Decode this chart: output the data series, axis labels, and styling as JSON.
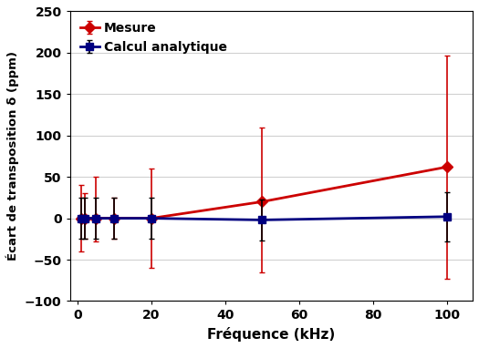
{
  "mesure_x": [
    1,
    2,
    5,
    10,
    20,
    50,
    100
  ],
  "mesure_y": [
    0,
    0,
    0,
    0,
    0,
    20,
    62
  ],
  "mesure_yerr_low": [
    40,
    25,
    28,
    25,
    60,
    85,
    135
  ],
  "mesure_yerr_high": [
    40,
    30,
    50,
    25,
    60,
    90,
    135
  ],
  "calcul_x": [
    1,
    2,
    5,
    10,
    20,
    50,
    100
  ],
  "calcul_y": [
    0,
    0,
    0,
    0,
    0,
    -2,
    2
  ],
  "calcul_yerr_low": [
    25,
    25,
    25,
    25,
    25,
    25,
    30
  ],
  "calcul_yerr_high": [
    25,
    25,
    25,
    25,
    25,
    25,
    30
  ],
  "mesure_color": "#cc0000",
  "calcul_color": "#000080",
  "errbar_color_calcul": "#000000",
  "xlabel": "Fréquence (kHz)",
  "ylabel": "Écart de transposition δ (ppm)",
  "xlim": [
    -2,
    107
  ],
  "ylim": [
    -100,
    250
  ],
  "yticks": [
    -100,
    -50,
    0,
    50,
    100,
    150,
    200,
    250
  ],
  "xticks": [
    0,
    20,
    40,
    60,
    80,
    100
  ],
  "legend_mesure": "Mesure",
  "legend_calcul": "Calcul analytique",
  "linewidth": 2.0,
  "markersize": 6,
  "capsize": 2,
  "elinewidth": 1.2
}
